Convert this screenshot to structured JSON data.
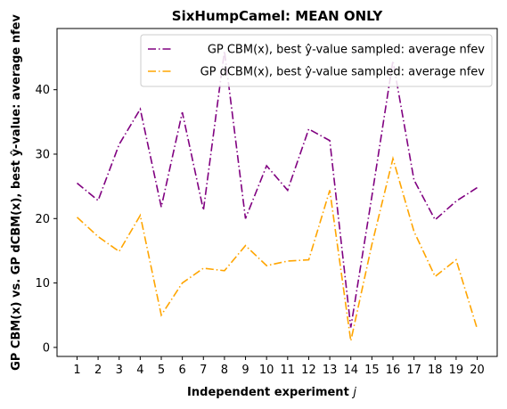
{
  "chart_data": {
    "type": "line",
    "title": "SixHumpCamel: MEAN ONLY",
    "xlabel": "Independent experiment j",
    "ylabel": "GP CBM(x) vs. GP dCBM(x), best ŷ-value: average nfev",
    "x": [
      1,
      2,
      3,
      4,
      5,
      6,
      7,
      8,
      9,
      10,
      11,
      12,
      13,
      14,
      15,
      16,
      17,
      18,
      19,
      20
    ],
    "xticks": [
      "1",
      "2",
      "3",
      "4",
      "5",
      "6",
      "7",
      "8",
      "9",
      "10",
      "11",
      "12",
      "13",
      "14",
      "15",
      "16",
      "17",
      "18",
      "19",
      "20"
    ],
    "yticks": [
      "0",
      "10",
      "20",
      "30",
      "40"
    ],
    "ylim": [
      -1.4,
      49.5
    ],
    "xlim": [
      0.05,
      20.95
    ],
    "legend_position": "top-right",
    "series": [
      {
        "name": "GP CBM(x), best ŷ-value sampled: average nfev",
        "color": "#800080",
        "dash": "dashdot",
        "values": [
          25.5,
          22.8,
          31.5,
          37.0,
          21.8,
          36.5,
          21.3,
          46.0,
          20.0,
          28.2,
          24.4,
          33.9,
          32.1,
          3.1,
          23.5,
          44.5,
          26.0,
          19.8,
          22.7,
          24.8
        ]
      },
      {
        "name": "GP dCBM(x), best ŷ-value sampled: average nfev",
        "color": "#ffa500",
        "dash": "dashdot",
        "values": [
          20.2,
          17.2,
          14.9,
          20.5,
          5.0,
          10.0,
          12.3,
          11.9,
          15.8,
          12.7,
          13.4,
          13.6,
          24.4,
          1.0,
          16.0,
          29.3,
          18.0,
          11.0,
          13.6,
          2.9
        ]
      }
    ]
  }
}
